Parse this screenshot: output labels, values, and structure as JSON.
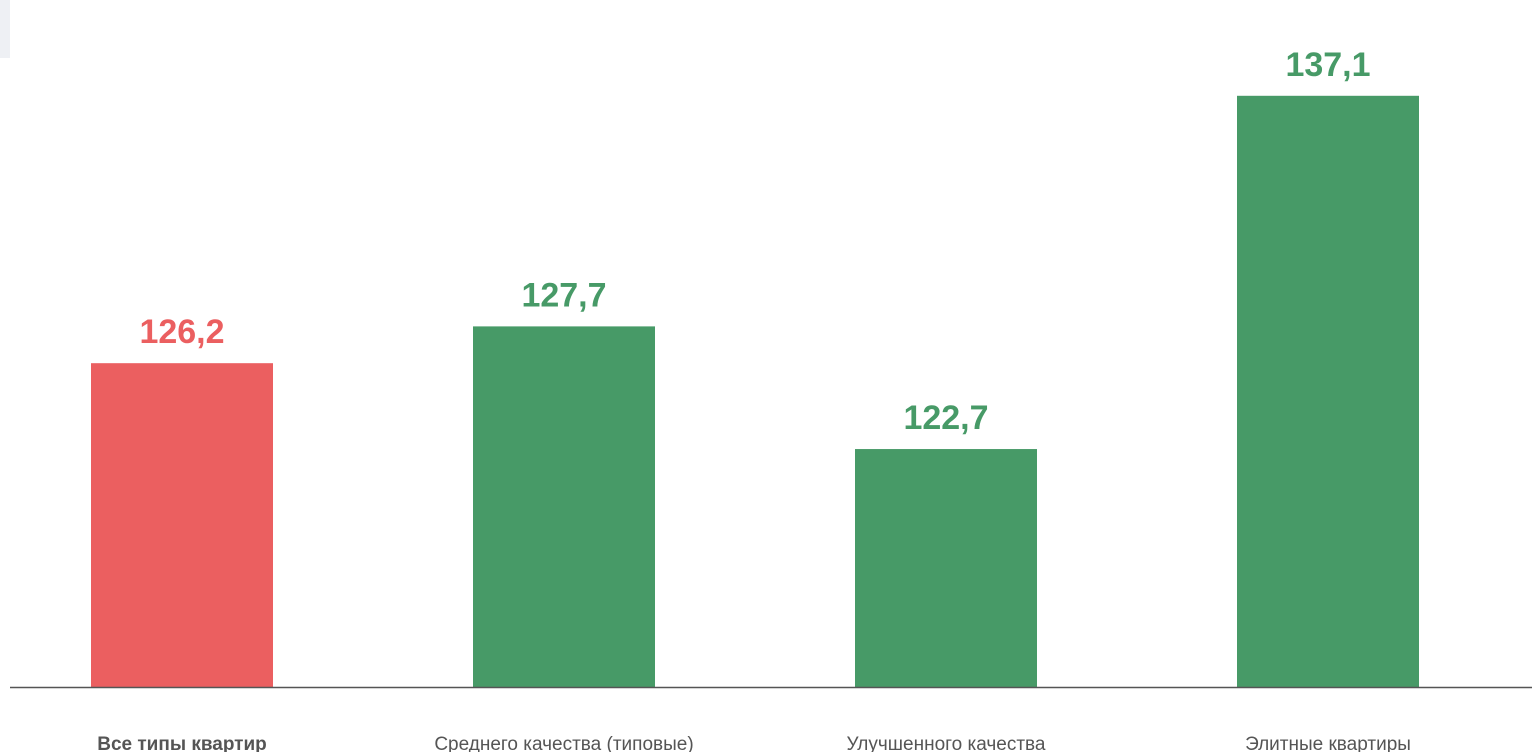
{
  "chart_data": {
    "type": "bar",
    "categories": [
      "Все типы квартир",
      "Среднего качества (типовые)",
      "Улучшенного качества",
      "Элитные квартиры"
    ],
    "values": [
      126.2,
      127.7,
      122.7,
      137.1
    ],
    "value_labels": [
      "126,2",
      "127,7",
      "122,7",
      "137,1"
    ],
    "highlight_index": 0,
    "colors": {
      "highlight": "#eb5f60",
      "default": "#479a67",
      "axis": "#555555",
      "category_text": "#555555"
    },
    "ylim": [
      113,
      138.6
    ],
    "grid": false,
    "legend": "none",
    "title": "",
    "xlabel": "",
    "ylabel": ""
  }
}
